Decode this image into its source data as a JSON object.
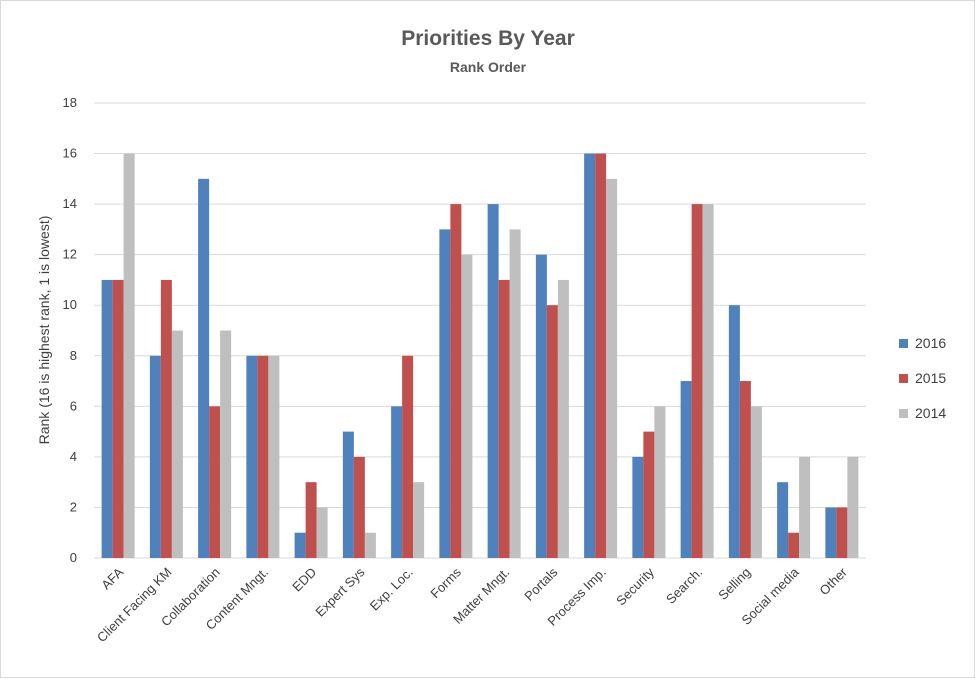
{
  "chart_data": {
    "type": "bar",
    "title": "Priorities By Year",
    "subtitle": "Rank Order",
    "xlabel": "",
    "ylabel": "Rank (16 is highest rank, 1 is lowest)",
    "ylim": [
      0,
      18
    ],
    "yticks": [
      0,
      2,
      4,
      6,
      8,
      10,
      12,
      14,
      16,
      18
    ],
    "grid": true,
    "legend_position": "right",
    "categories": [
      "AFA",
      "Client Facing KM",
      "Collaboration",
      "Content Mngt.",
      "EDD",
      "Expert Sys",
      "Exp. Loc.",
      "Forms",
      "Matter Mngt.",
      "Portals",
      "Process Imp.",
      "Security",
      "Search.",
      "Selling",
      "Social media",
      "Other"
    ],
    "series": [
      {
        "name": "2016",
        "color": "#4f81bd",
        "values": [
          11,
          8,
          15,
          8,
          1,
          5,
          6,
          13,
          14,
          12,
          16,
          4,
          7,
          10,
          3,
          2
        ]
      },
      {
        "name": "2015",
        "color": "#c0504d",
        "values": [
          11,
          11,
          6,
          8,
          3,
          4,
          8,
          14,
          11,
          10,
          16,
          5,
          14,
          7,
          1,
          2
        ]
      },
      {
        "name": "2014",
        "color": "#bfbfbf",
        "values": [
          16,
          9,
          9,
          8,
          2,
          1,
          3,
          12,
          13,
          11,
          15,
          6,
          14,
          6,
          4,
          4
        ]
      }
    ]
  }
}
